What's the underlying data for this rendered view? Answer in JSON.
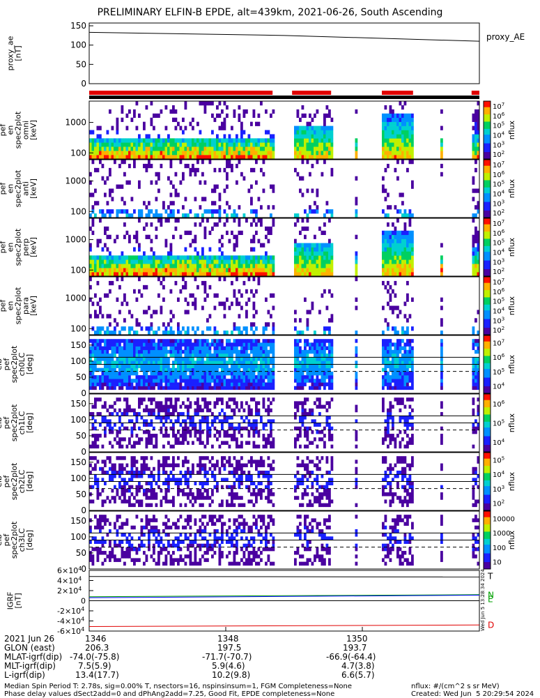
{
  "title": "PRELIMINARY ELFIN-B EPDE, alt=439km, 2021-06-26, South Ascending",
  "colors": {
    "axis": "#000000",
    "red_bar": "#e00000",
    "black_bar": "#000000",
    "bx": "#000000",
    "by": "#00a000",
    "bz": "#0000ff",
    "bd": "#e00000"
  },
  "chart_data": {
    "type": "multi-panel spectrogram",
    "x_axis": {
      "ticks": [
        "1346",
        "1348",
        "1350"
      ],
      "rows": [
        {
          "label": "2021 Jun 26",
          "values": [
            "1346",
            "1348",
            "1350"
          ]
        },
        {
          "label": "GLON (east)",
          "values": [
            "206.3",
            "197.5",
            "193.7"
          ]
        },
        {
          "label": "MLAT-igrf(dip)",
          "values": [
            "-74.0(-75.8)",
            "-71.7(-70.7)",
            "-66.9(-64.4)"
          ]
        },
        {
          "label": "MLT-igrf(dip)",
          "values": [
            "7.5(5.9)",
            "5.9(4.6)",
            "4.7(3.8)"
          ]
        },
        {
          "label": "L-igrf(dip)",
          "values": [
            "13.4(17.7)",
            "10.2(9.8)",
            "6.6(5.7)"
          ]
        }
      ]
    },
    "panels": [
      {
        "id": "proxy_ae",
        "ylabel": "proxy_ae\n[nT]",
        "yticks": [
          "0",
          "50",
          "100",
          "150"
        ],
        "ylim": [
          0,
          150
        ],
        "legend": "proxy_AE",
        "line": [
          [
            0,
            133
          ],
          [
            0.5,
            125
          ],
          [
            1,
            110
          ]
        ]
      },
      {
        "id": "spec_omni",
        "ylabel": "elb\npef\nen\nspec2plot\nomni\n[keV]",
        "yticks": [
          "100",
          "1000"
        ],
        "ylog": true,
        "colorbar": {
          "label": "nflux",
          "ticks": [
            "10^2",
            "10^3",
            "10^4",
            "10^5",
            "10^6",
            "10^7"
          ]
        }
      },
      {
        "id": "spec_anti",
        "ylabel": "elb\npef\nen\nspec2plot\nanti\n[keV]",
        "yticks": [
          "100",
          "1000"
        ],
        "ylog": true,
        "colorbar": {
          "label": "nflux",
          "ticks": [
            "10^2",
            "10^3",
            "10^4",
            "10^5",
            "10^6",
            "10^7"
          ]
        }
      },
      {
        "id": "spec_perp",
        "ylabel": "elb\npef\nen\nspec2plot\nperp\n[keV]",
        "yticks": [
          "100",
          "1000"
        ],
        "ylog": true,
        "colorbar": {
          "label": "nflux",
          "ticks": [
            "10^2",
            "10^3",
            "10^4",
            "10^5",
            "10^6",
            "10^7"
          ]
        }
      },
      {
        "id": "spec_para",
        "ylabel": "elb\npef\nen\nspec2plot\npara\n[keV]",
        "yticks": [
          "100",
          "1000"
        ],
        "ylog": true,
        "colorbar": {
          "label": "nflux",
          "ticks": [
            "10^2",
            "10^3",
            "10^4",
            "10^5",
            "10^6",
            "10^7"
          ]
        }
      },
      {
        "id": "pa_ch0",
        "ylabel": "elb\npef\nspec2plot\nch0LC\n[deg]",
        "yticks": [
          "0",
          "50",
          "100",
          "150"
        ],
        "ylim": [
          0,
          180
        ],
        "colorbar": {
          "label": "nflux",
          "ticks": [
            "10^4",
            "10^5",
            "10^6",
            "10^7"
          ]
        }
      },
      {
        "id": "pa_ch1",
        "ylabel": "elb\npef\nspec2plot\nch1LC\n[deg]",
        "yticks": [
          "0",
          "50",
          "100",
          "150"
        ],
        "ylim": [
          0,
          180
        ],
        "colorbar": {
          "label": "nflux",
          "ticks": [
            "10^4",
            "10^5",
            "10^6"
          ]
        }
      },
      {
        "id": "pa_ch2",
        "ylabel": "elb\npef\nspec2plot\nch2LC\n[deg]",
        "yticks": [
          "0",
          "50",
          "100",
          "150"
        ],
        "ylim": [
          0,
          180
        ],
        "colorbar": {
          "label": "nflux",
          "ticks": [
            "10^2",
            "10^3",
            "10^4",
            "10^5"
          ]
        }
      },
      {
        "id": "pa_ch3",
        "ylabel": "elb\npef\nspec2plot\nch3LC\n[deg]",
        "yticks": [
          "0",
          "50",
          "100",
          "150"
        ],
        "ylim": [
          0,
          180
        ],
        "colorbar": {
          "label": "nflux",
          "ticks": [
            "10",
            "100",
            "1000",
            "10000"
          ]
        }
      },
      {
        "id": "igrf",
        "ylabel": "IGRF\n[nT]",
        "yticks": [
          "-6x10^4",
          "-4x10^4",
          "-2x10^4",
          "0",
          "2x10^4",
          "4x10^4",
          "6x10^4"
        ],
        "ylim": [
          -60000,
          60000
        ],
        "legend": [
          "T",
          "N",
          "E",
          "D"
        ]
      }
    ],
    "science_zones": [
      [
        0.0,
        0.47
      ],
      [
        0.52,
        0.62
      ],
      [
        0.75,
        0.83
      ],
      [
        0.98,
        1.0
      ]
    ]
  },
  "footer": {
    "line1": "Median Spin Period T: 2.78s, sig=0.00% T, nsectors=16, nspinsinsum=1, FGM Completeness=None",
    "line2": "Phase delay values dSect2add=0 and dPhAng2add=7.25, Good Fit, EPDE completeness=None",
    "nflux_units": "nflux: #/(cm^2 s sr MeV)",
    "created": "Created: Wed Jun  5 20:29:54 2024"
  },
  "side_stamp": "Wed Jun  5 13:28:34 2024"
}
